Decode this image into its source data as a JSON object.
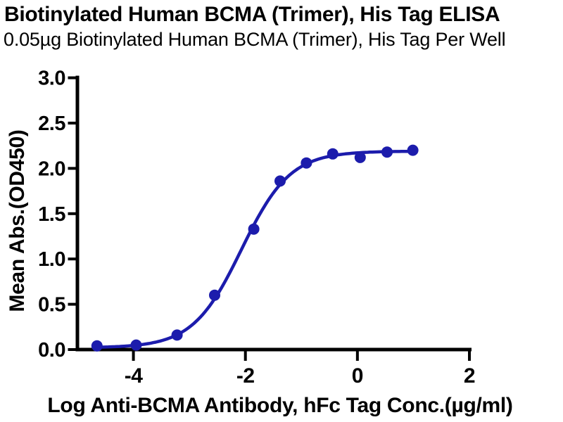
{
  "chart_data": {
    "type": "scatter",
    "title": "Biotinylated Human BCMA (Trimer), His Tag ELISA",
    "subtitle": "0.05µg Biotinylated Human BCMA (Trimer), His Tag Per Well",
    "xlabel": "Log Anti-BCMA Antibody, hFc Tag Conc.(µg/ml)",
    "ylabel": "Mean Abs.(OD450)",
    "xlim": [
      -5,
      2
    ],
    "ylim": [
      0,
      3
    ],
    "grid": false,
    "legend_position": "none",
    "background_color": "#ffffff",
    "axis_color": "#000000",
    "x_ticks": {
      "values": [
        -4,
        -2,
        0,
        2
      ],
      "labels": [
        "-4",
        "-2",
        "0",
        "2"
      ]
    },
    "y_ticks": {
      "values": [
        0,
        0.5,
        1,
        1.5,
        2,
        2.5,
        3
      ],
      "labels": [
        "0.0",
        "0.5",
        "1.0",
        "1.5",
        "2.0",
        "2.5",
        "3.0"
      ]
    },
    "series": [
      {
        "name": "Anti-BCMA Antibody, hFc Tag",
        "color": "#1c1cac",
        "marker": "circle",
        "points": [
          {
            "x": -4.65,
            "y": 0.04
          },
          {
            "x": -3.95,
            "y": 0.05
          },
          {
            "x": -3.22,
            "y": 0.16
          },
          {
            "x": -2.55,
            "y": 0.6
          },
          {
            "x": -1.85,
            "y": 1.33
          },
          {
            "x": -1.38,
            "y": 1.86
          },
          {
            "x": -0.91,
            "y": 2.06
          },
          {
            "x": -0.44,
            "y": 2.16
          },
          {
            "x": 0.05,
            "y": 2.12
          },
          {
            "x": 0.53,
            "y": 2.18
          },
          {
            "x": 0.99,
            "y": 2.2
          }
        ],
        "fit": {
          "model": "4PL",
          "bottom": 0.02,
          "top": 2.19,
          "log_ec50": -2.07,
          "hill": 1.0,
          "x_start": -4.65,
          "x_end": 0.99
        }
      }
    ]
  }
}
